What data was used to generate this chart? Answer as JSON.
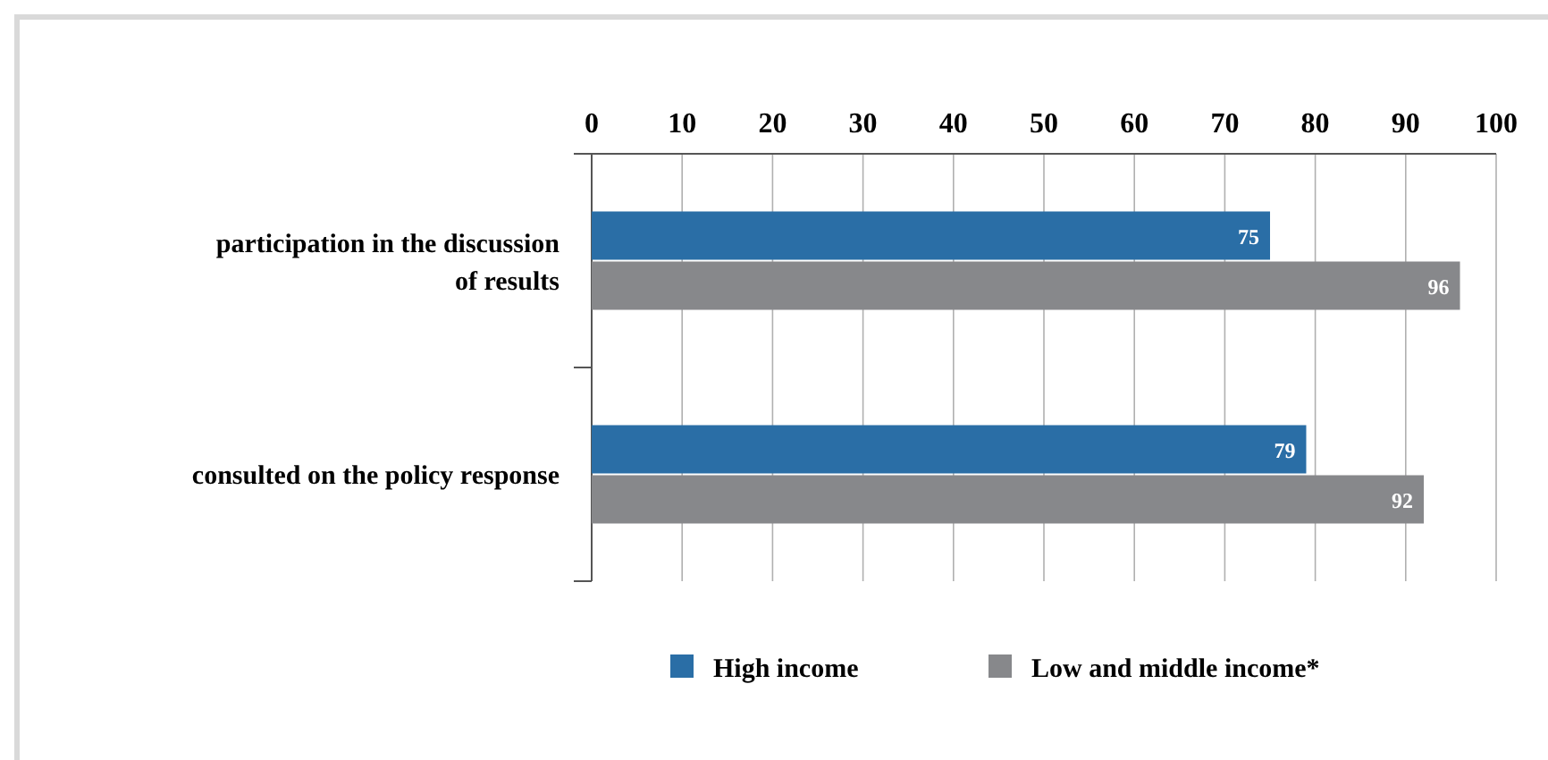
{
  "chart_data": {
    "type": "bar",
    "orientation": "horizontal",
    "categories": [
      "participation in the discussion\nof results",
      "consulted on the policy response"
    ],
    "series": [
      {
        "name": "High income",
        "color": "#2a6ea6",
        "values": [
          75,
          79
        ]
      },
      {
        "name": "Low and middle income*",
        "color": "#87888b",
        "values": [
          96,
          92
        ]
      }
    ],
    "xlim": [
      0,
      100
    ],
    "xticks": [
      0,
      10,
      20,
      30,
      40,
      50,
      60,
      70,
      80,
      90,
      100
    ],
    "grid": "x",
    "legend": "bottom",
    "data_labels": true
  }
}
